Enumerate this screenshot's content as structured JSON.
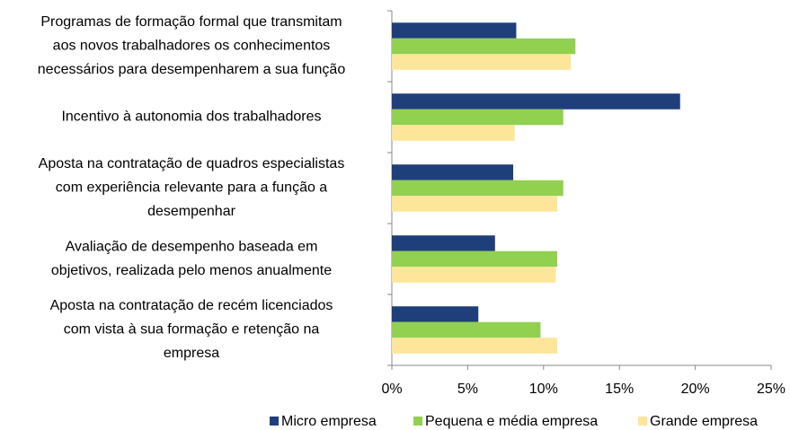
{
  "chart_data": {
    "type": "bar",
    "orientation": "horizontal",
    "categories": [
      [
        "Programas de formação formal que transmitam",
        "aos novos trabalhadores os conhecimentos",
        "necessários para desempenharem a sua função"
      ],
      [
        "Incentivo à autonomia dos trabalhadores"
      ],
      [
        "Aposta na contratação de quadros especialistas",
        "com experiência relevante para a função a",
        "desempenhar"
      ],
      [
        "Avaliação de desempenho baseada em",
        "objetivos, realizada pelo menos anualmente"
      ],
      [
        "Aposta na contratação de recém licenciados",
        "com vista à sua formação e retenção na",
        "empresa"
      ]
    ],
    "series": [
      {
        "name": "Micro empresa",
        "color": "#1f3f7a",
        "values": [
          8.2,
          19.0,
          8.0,
          6.8,
          5.7
        ]
      },
      {
        "name": "Pequena e média empresa",
        "color": "#92d050",
        "values": [
          12.1,
          11.3,
          11.3,
          10.9,
          9.8
        ]
      },
      {
        "name": "Grande empresa",
        "color": "#fde59a",
        "values": [
          11.8,
          8.1,
          10.9,
          10.8,
          10.9
        ]
      }
    ],
    "xlim": [
      0,
      25
    ],
    "xticks": [
      {
        "value": 0,
        "label": "0%"
      },
      {
        "value": 5,
        "label": "5%"
      },
      {
        "value": 10,
        "label": "10%"
      },
      {
        "value": 15,
        "label": "15%"
      },
      {
        "value": 20,
        "label": "20%"
      },
      {
        "value": 25,
        "label": "25%"
      }
    ],
    "legend": "bottom"
  }
}
